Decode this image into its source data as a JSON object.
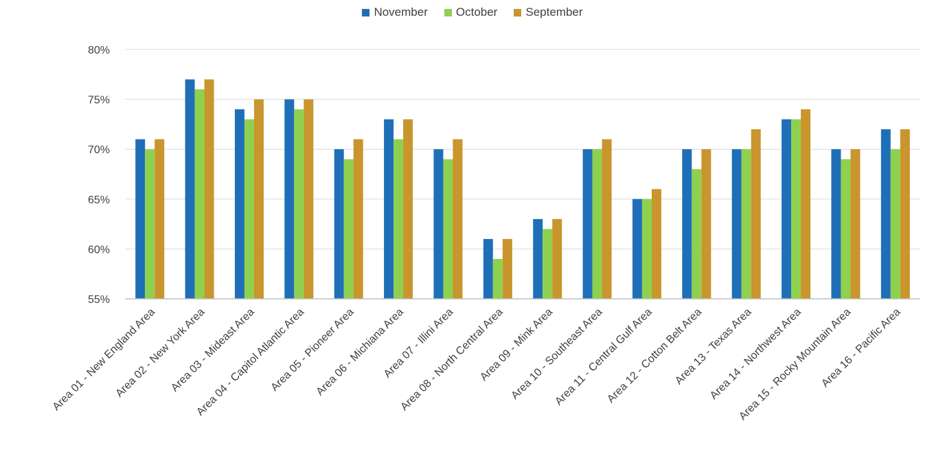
{
  "chart_data": {
    "type": "bar",
    "title": "",
    "xlabel": "",
    "ylabel": "",
    "ylim": [
      0.55,
      0.8
    ],
    "yticks": [
      "55%",
      "60%",
      "65%",
      "70%",
      "75%",
      "80%"
    ],
    "legend_position": "top-center",
    "grid": true,
    "categories": [
      "Area 01 - New England Area",
      "Area 02 - New York Area",
      "Area 03 - Mideast Area",
      "Area 04 - Capitol Atlantic Area",
      "Area 05 - Pioneer Area",
      "Area 06 - Michiana Area",
      "Area 07 - Illini Area",
      "Area 08 - North Central Area",
      "Area 09 - Mink Area",
      "Area 10 - Southeast Area",
      "Area 11 - Central Gulf Area",
      "Area 12 - Cotton Belt Area",
      "Area 13 - Texas Area",
      "Area 14 - Northwest Area",
      "Area 15 - Rocky Mountain Area",
      "Area 16 - Pacific Area"
    ],
    "series": [
      {
        "name": "November",
        "color": "#1f6fb8",
        "values": [
          0.71,
          0.77,
          0.74,
          0.75,
          0.7,
          0.73,
          0.7,
          0.61,
          0.63,
          0.7,
          0.65,
          0.7,
          0.7,
          0.73,
          0.7,
          0.72
        ]
      },
      {
        "name": "October",
        "color": "#8fd14f",
        "values": [
          0.7,
          0.76,
          0.73,
          0.74,
          0.69,
          0.71,
          0.69,
          0.59,
          0.62,
          0.7,
          0.65,
          0.68,
          0.7,
          0.73,
          0.69,
          0.7
        ]
      },
      {
        "name": "September",
        "color": "#c9952d",
        "values": [
          0.71,
          0.77,
          0.75,
          0.75,
          0.71,
          0.73,
          0.71,
          0.61,
          0.63,
          0.71,
          0.66,
          0.7,
          0.72,
          0.74,
          0.7,
          0.72
        ]
      }
    ]
  }
}
